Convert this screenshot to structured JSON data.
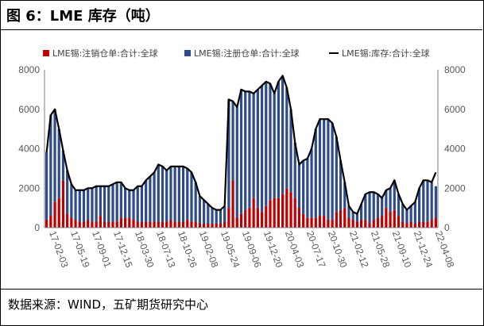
{
  "title": "图 6：LME 库存（吨）",
  "source": "数据来源：WIND，五矿期货研究中心",
  "colors": {
    "cancelled": "#C00000",
    "registered": "#2E4C8C",
    "inventory": "#000000",
    "axis": "#7F7F7F"
  },
  "chart_data": {
    "type": "bar",
    "title": "",
    "xlabel": "",
    "ylabel": "",
    "ylim": [
      0,
      8000
    ],
    "y2lim": [
      0,
      8000
    ],
    "yticks": [
      0,
      2000,
      4000,
      6000,
      8000
    ],
    "grid": false,
    "legend_position": "top",
    "x_tick_labels": [
      "17-02-03",
      "17-05-19",
      "17-09-01",
      "17-12-15",
      "18-03-30",
      "18-07-13",
      "18-10-26",
      "19-02-08",
      "19-05-24",
      "19-09-06",
      "19-12-20",
      "20-04-03",
      "20-07-17",
      "20-10-30",
      "21-02-12",
      "21-05-28",
      "21-09-10",
      "21-12-24",
      "22-04-08"
    ],
    "series": [
      {
        "name": "LME锡:注销仓单:合计:全球",
        "type": "bar",
        "stacked": true,
        "values": [
          400,
          600,
          1300,
          1500,
          2400,
          700,
          500,
          400,
          300,
          300,
          400,
          300,
          300,
          600,
          300,
          300,
          300,
          300,
          500,
          500,
          500,
          400,
          300,
          300,
          300,
          300,
          300,
          300,
          300,
          300,
          400,
          300,
          300,
          300,
          400,
          300,
          300,
          200,
          200,
          200,
          200,
          200,
          200,
          300,
          1000,
          2400,
          500,
          700,
          900,
          1000,
          1500,
          1000,
          800,
          1100,
          1400,
          1500,
          1500,
          1700,
          2000,
          1800,
          1500,
          1000,
          700,
          500,
          500,
          500,
          600,
          600,
          400,
          400,
          800,
          900,
          1000,
          500,
          400,
          300,
          400,
          400,
          200,
          400,
          500,
          600,
          1000,
          800,
          900,
          600,
          300,
          200,
          300,
          200,
          300,
          300,
          300,
          400,
          500
        ]
      },
      {
        "name": "LME锡:注册仓单:合计:全球",
        "type": "bar",
        "stacked": true,
        "values": [
          3400,
          5100,
          4700,
          3500,
          1500,
          2200,
          1700,
          1500,
          1600,
          1600,
          1600,
          1700,
          1800,
          1500,
          1800,
          1800,
          1900,
          2000,
          1800,
          1500,
          1400,
          1500,
          1800,
          1800,
          2100,
          2300,
          2500,
          2900,
          2800,
          2600,
          2700,
          2800,
          2800,
          2800,
          2600,
          2500,
          2000,
          1400,
          1200,
          1000,
          800,
          700,
          700,
          800,
          5500,
          4000,
          5600,
          6300,
          6000,
          5900,
          5300,
          6000,
          6400,
          6300,
          5900,
          5300,
          5900,
          6000,
          5100,
          4200,
          2800,
          2200,
          2700,
          3000,
          3500,
          4500,
          4900,
          4900,
          5100,
          4900,
          3800,
          2500,
          1300,
          600,
          400,
          400,
          800,
          1300,
          1600,
          1400,
          1200,
          900,
          900,
          1200,
          1500,
          1100,
          900,
          700,
          800,
          1100,
          1700,
          2100,
          2100,
          1900,
          1600
        ]
      },
      {
        "name": "LME锡:库存:合计:全球",
        "type": "line",
        "values": [
          3800,
          5700,
          6000,
          5000,
          3900,
          2900,
          2200,
          1900,
          1900,
          1900,
          2000,
          2000,
          2100,
          2100,
          2100,
          2100,
          2200,
          2300,
          2300,
          2000,
          1900,
          1900,
          2100,
          2100,
          2400,
          2600,
          2800,
          3200,
          3100,
          2900,
          3100,
          3100,
          3100,
          3100,
          3000,
          2800,
          2300,
          1600,
          1400,
          1200,
          1000,
          900,
          900,
          1100,
          6500,
          6400,
          6100,
          7000,
          6900,
          6900,
          6800,
          7000,
          7200,
          7400,
          7300,
          6800,
          7400,
          7700,
          7100,
          6000,
          4300,
          3200,
          3400,
          3500,
          4000,
          5000,
          5500,
          5500,
          5500,
          5300,
          4600,
          3400,
          2300,
          1100,
          800,
          700,
          1200,
          1700,
          1800,
          1800,
          1700,
          1500,
          1900,
          2000,
          2400,
          1700,
          1200,
          900,
          1100,
          1300,
          2000,
          2400,
          2400,
          2300,
          2800
        ]
      }
    ],
    "legend": [
      "LME锡:注销仓单:合计:全球",
      "LME锡:注册仓单:合计:全球",
      "LME锡:库存:合计:全球"
    ]
  }
}
